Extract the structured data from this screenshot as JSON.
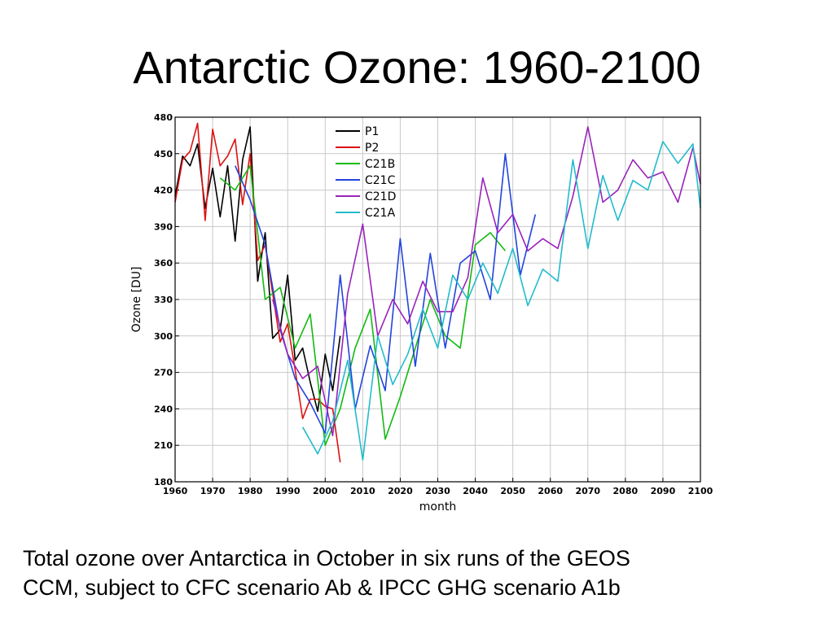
{
  "title": "Antarctic Ozone: 1960-2100",
  "caption_line1": "Total ozone over Antarctica in October in six runs of the GEOS",
  "caption_line2": "CCM, subject to CFC scenario Ab & IPCC GHG scenario A1b",
  "chart_data": {
    "type": "line",
    "xlabel": "month",
    "ylabel": "Ozone [DU]",
    "xlim": [
      1960,
      2100
    ],
    "ylim": [
      180,
      480
    ],
    "xticks": [
      1960,
      1970,
      1980,
      1990,
      2000,
      2010,
      2020,
      2030,
      2040,
      2050,
      2060,
      2070,
      2080,
      2090,
      2100
    ],
    "yticks": [
      180,
      210,
      240,
      270,
      300,
      330,
      360,
      390,
      420,
      450,
      480
    ],
    "grid": true,
    "legend_position": "top-center",
    "series": [
      {
        "name": "P1",
        "color": "#000000",
        "x": [
          1960,
          1962,
          1964,
          1966,
          1968,
          1970,
          1972,
          1974,
          1976,
          1978,
          1980,
          1982,
          1984,
          1986,
          1988,
          1990,
          1992,
          1994,
          1996,
          1998,
          2000,
          2002,
          2004
        ],
        "y": [
          415,
          448,
          440,
          458,
          405,
          438,
          398,
          440,
          378,
          445,
          472,
          345,
          385,
          298,
          305,
          350,
          280,
          290,
          262,
          238,
          285,
          255,
          300
        ]
      },
      {
        "name": "P2",
        "color": "#dd1111",
        "x": [
          1960,
          1962,
          1964,
          1966,
          1968,
          1970,
          1972,
          1974,
          1976,
          1978,
          1980,
          1982,
          1984,
          1986,
          1988,
          1990,
          1992,
          1994,
          1996,
          1998,
          2000,
          2002,
          2004
        ],
        "y": [
          410,
          445,
          452,
          475,
          395,
          470,
          440,
          448,
          462,
          408,
          450,
          362,
          375,
          335,
          295,
          310,
          272,
          232,
          248,
          248,
          242,
          240,
          196
        ]
      },
      {
        "name": "C21B",
        "color": "#11bb11",
        "x": [
          1972,
          1976,
          1980,
          1984,
          1988,
          1992,
          1996,
          2000,
          2004,
          2008,
          2012,
          2016,
          2020,
          2024,
          2028,
          2032,
          2036,
          2040,
          2044,
          2048
        ],
        "y": [
          430,
          420,
          440,
          330,
          340,
          290,
          318,
          210,
          240,
          290,
          322,
          215,
          250,
          290,
          330,
          300,
          290,
          375,
          385,
          370
        ]
      },
      {
        "name": "C21C",
        "color": "#2244dd",
        "x": [
          1976,
          1980,
          1984,
          1988,
          1992,
          1996,
          2000,
          2004,
          2008,
          2012,
          2016,
          2020,
          2024,
          2028,
          2032,
          2036,
          2040,
          2044,
          2048,
          2052,
          2056
        ],
        "y": [
          440,
          412,
          375,
          305,
          265,
          245,
          220,
          350,
          240,
          292,
          255,
          380,
          275,
          368,
          290,
          360,
          370,
          330,
          450,
          350,
          400
        ]
      },
      {
        "name": "C21D",
        "color": "#9922bb",
        "x": [
          1986,
          1990,
          1994,
          1998,
          2002,
          2006,
          2010,
          2014,
          2018,
          2022,
          2026,
          2030,
          2034,
          2038,
          2042,
          2046,
          2050,
          2054,
          2058,
          2062,
          2066,
          2070,
          2074,
          2078,
          2082,
          2086,
          2090,
          2094,
          2098,
          2100
        ],
        "y": [
          330,
          285,
          265,
          275,
          218,
          335,
          392,
          300,
          330,
          310,
          345,
          320,
          320,
          348,
          430,
          385,
          400,
          370,
          380,
          372,
          415,
          472,
          410,
          420,
          445,
          430,
          435,
          410,
          455,
          425
        ]
      },
      {
        "name": "C21A",
        "color": "#22bbcc",
        "x": [
          1994,
          1998,
          2002,
          2006,
          2010,
          2014,
          2018,
          2022,
          2026,
          2030,
          2034,
          2038,
          2042,
          2046,
          2050,
          2054,
          2058,
          2062,
          2066,
          2070,
          2074,
          2078,
          2082,
          2086,
          2090,
          2094,
          2098,
          2100
        ],
        "y": [
          225,
          203,
          230,
          280,
          198,
          300,
          260,
          285,
          322,
          290,
          350,
          330,
          360,
          335,
          372,
          325,
          355,
          345,
          445,
          372,
          432,
          395,
          428,
          420,
          460,
          442,
          458,
          405
        ]
      }
    ]
  }
}
